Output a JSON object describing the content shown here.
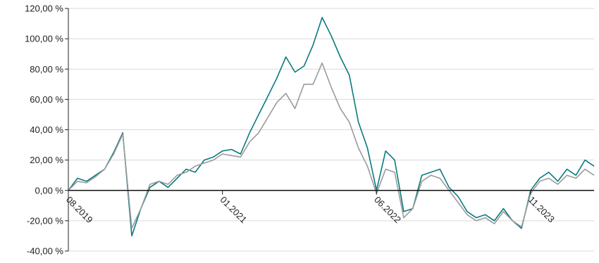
{
  "chart_data": {
    "type": "line",
    "title": "",
    "xlabel": "",
    "ylabel": "",
    "ylim": [
      -40,
      120
    ],
    "x_range": [
      "2019-08",
      "2024-06"
    ],
    "grid": "horizontal",
    "legend": "none",
    "y_ticks": [
      {
        "value": 120,
        "label": "120,00 %"
      },
      {
        "value": 100,
        "label": "100,00 %"
      },
      {
        "value": 80,
        "label": "80,00 %"
      },
      {
        "value": 60,
        "label": "60,00 %"
      },
      {
        "value": 40,
        "label": "40,00 %"
      },
      {
        "value": 20,
        "label": "20,00 %"
      },
      {
        "value": 0,
        "label": "0,00 %"
      },
      {
        "value": -20,
        "label": "-20,00 %"
      },
      {
        "value": -40,
        "label": "-40,00 %"
      }
    ],
    "x_ticks": [
      {
        "value": "2019-08",
        "label": "08.2019"
      },
      {
        "value": "2021-01",
        "label": "01.2021"
      },
      {
        "value": "2022-06",
        "label": "06.2022"
      },
      {
        "value": "2023-11",
        "label": "11.2023"
      }
    ],
    "series": [
      {
        "color": "#0a7a7f",
        "points": [
          [
            "2019-08",
            0
          ],
          [
            "2019-09",
            8
          ],
          [
            "2019-10",
            6
          ],
          [
            "2019-11",
            10
          ],
          [
            "2019-12",
            14
          ],
          [
            "2020-01",
            25
          ],
          [
            "2020-02",
            38
          ],
          [
            "2020-03",
            -30
          ],
          [
            "2020-04",
            -12
          ],
          [
            "2020-05",
            2
          ],
          [
            "2020-06",
            6
          ],
          [
            "2020-07",
            2
          ],
          [
            "2020-08",
            8
          ],
          [
            "2020-09",
            14
          ],
          [
            "2020-10",
            12
          ],
          [
            "2020-11",
            20
          ],
          [
            "2020-12",
            22
          ],
          [
            "2021-01",
            26
          ],
          [
            "2021-02",
            27
          ],
          [
            "2021-03",
            24
          ],
          [
            "2021-04",
            38
          ],
          [
            "2021-05",
            50
          ],
          [
            "2021-06",
            62
          ],
          [
            "2021-07",
            74
          ],
          [
            "2021-08",
            88
          ],
          [
            "2021-09",
            78
          ],
          [
            "2021-10",
            82
          ],
          [
            "2021-11",
            96
          ],
          [
            "2021-12",
            114
          ],
          [
            "2022-01",
            102
          ],
          [
            "2022-02",
            88
          ],
          [
            "2022-03",
            76
          ],
          [
            "2022-04",
            45
          ],
          [
            "2022-05",
            28
          ],
          [
            "2022-06",
            0
          ],
          [
            "2022-07",
            26
          ],
          [
            "2022-08",
            20
          ],
          [
            "2022-09",
            -14
          ],
          [
            "2022-10",
            -12
          ],
          [
            "2022-11",
            10
          ],
          [
            "2022-12",
            12
          ],
          [
            "2023-01",
            14
          ],
          [
            "2023-02",
            2
          ],
          [
            "2023-03",
            -4
          ],
          [
            "2023-04",
            -14
          ],
          [
            "2023-05",
            -18
          ],
          [
            "2023-06",
            -16
          ],
          [
            "2023-07",
            -20
          ],
          [
            "2023-08",
            -12
          ],
          [
            "2023-09",
            -20
          ],
          [
            "2023-10",
            -25
          ],
          [
            "2023-11",
            0
          ],
          [
            "2023-12",
            8
          ],
          [
            "2024-01",
            12
          ],
          [
            "2024-02",
            6
          ],
          [
            "2024-03",
            14
          ],
          [
            "2024-04",
            10
          ],
          [
            "2024-05",
            20
          ],
          [
            "2024-06",
            16
          ]
        ]
      },
      {
        "color": "#9b9b9b",
        "points": [
          [
            "2019-08",
            0
          ],
          [
            "2019-09",
            6
          ],
          [
            "2019-10",
            5
          ],
          [
            "2019-11",
            9
          ],
          [
            "2019-12",
            14
          ],
          [
            "2020-01",
            24
          ],
          [
            "2020-02",
            37
          ],
          [
            "2020-03",
            -25
          ],
          [
            "2020-04",
            -12
          ],
          [
            "2020-05",
            4
          ],
          [
            "2020-06",
            6
          ],
          [
            "2020-07",
            4
          ],
          [
            "2020-08",
            10
          ],
          [
            "2020-09",
            12
          ],
          [
            "2020-10",
            16
          ],
          [
            "2020-11",
            18
          ],
          [
            "2020-12",
            20
          ],
          [
            "2021-01",
            24
          ],
          [
            "2021-02",
            23
          ],
          [
            "2021-03",
            22
          ],
          [
            "2021-04",
            32
          ],
          [
            "2021-05",
            38
          ],
          [
            "2021-06",
            48
          ],
          [
            "2021-07",
            58
          ],
          [
            "2021-08",
            64
          ],
          [
            "2021-09",
            54
          ],
          [
            "2021-10",
            70
          ],
          [
            "2021-11",
            70
          ],
          [
            "2021-12",
            84
          ],
          [
            "2022-01",
            68
          ],
          [
            "2022-02",
            54
          ],
          [
            "2022-03",
            45
          ],
          [
            "2022-04",
            28
          ],
          [
            "2022-05",
            16
          ],
          [
            "2022-06",
            -2
          ],
          [
            "2022-07",
            14
          ],
          [
            "2022-08",
            12
          ],
          [
            "2022-09",
            -18
          ],
          [
            "2022-10",
            -12
          ],
          [
            "2022-11",
            6
          ],
          [
            "2022-12",
            10
          ],
          [
            "2023-01",
            8
          ],
          [
            "2023-02",
            0
          ],
          [
            "2023-03",
            -8
          ],
          [
            "2023-04",
            -16
          ],
          [
            "2023-05",
            -20
          ],
          [
            "2023-06",
            -18
          ],
          [
            "2023-07",
            -22
          ],
          [
            "2023-08",
            -14
          ],
          [
            "2023-09",
            -20
          ],
          [
            "2023-10",
            -24
          ],
          [
            "2023-11",
            -2
          ],
          [
            "2023-12",
            6
          ],
          [
            "2024-01",
            8
          ],
          [
            "2024-02",
            4
          ],
          [
            "2024-03",
            10
          ],
          [
            "2024-04",
            8
          ],
          [
            "2024-05",
            14
          ],
          [
            "2024-06",
            10
          ]
        ]
      }
    ]
  }
}
